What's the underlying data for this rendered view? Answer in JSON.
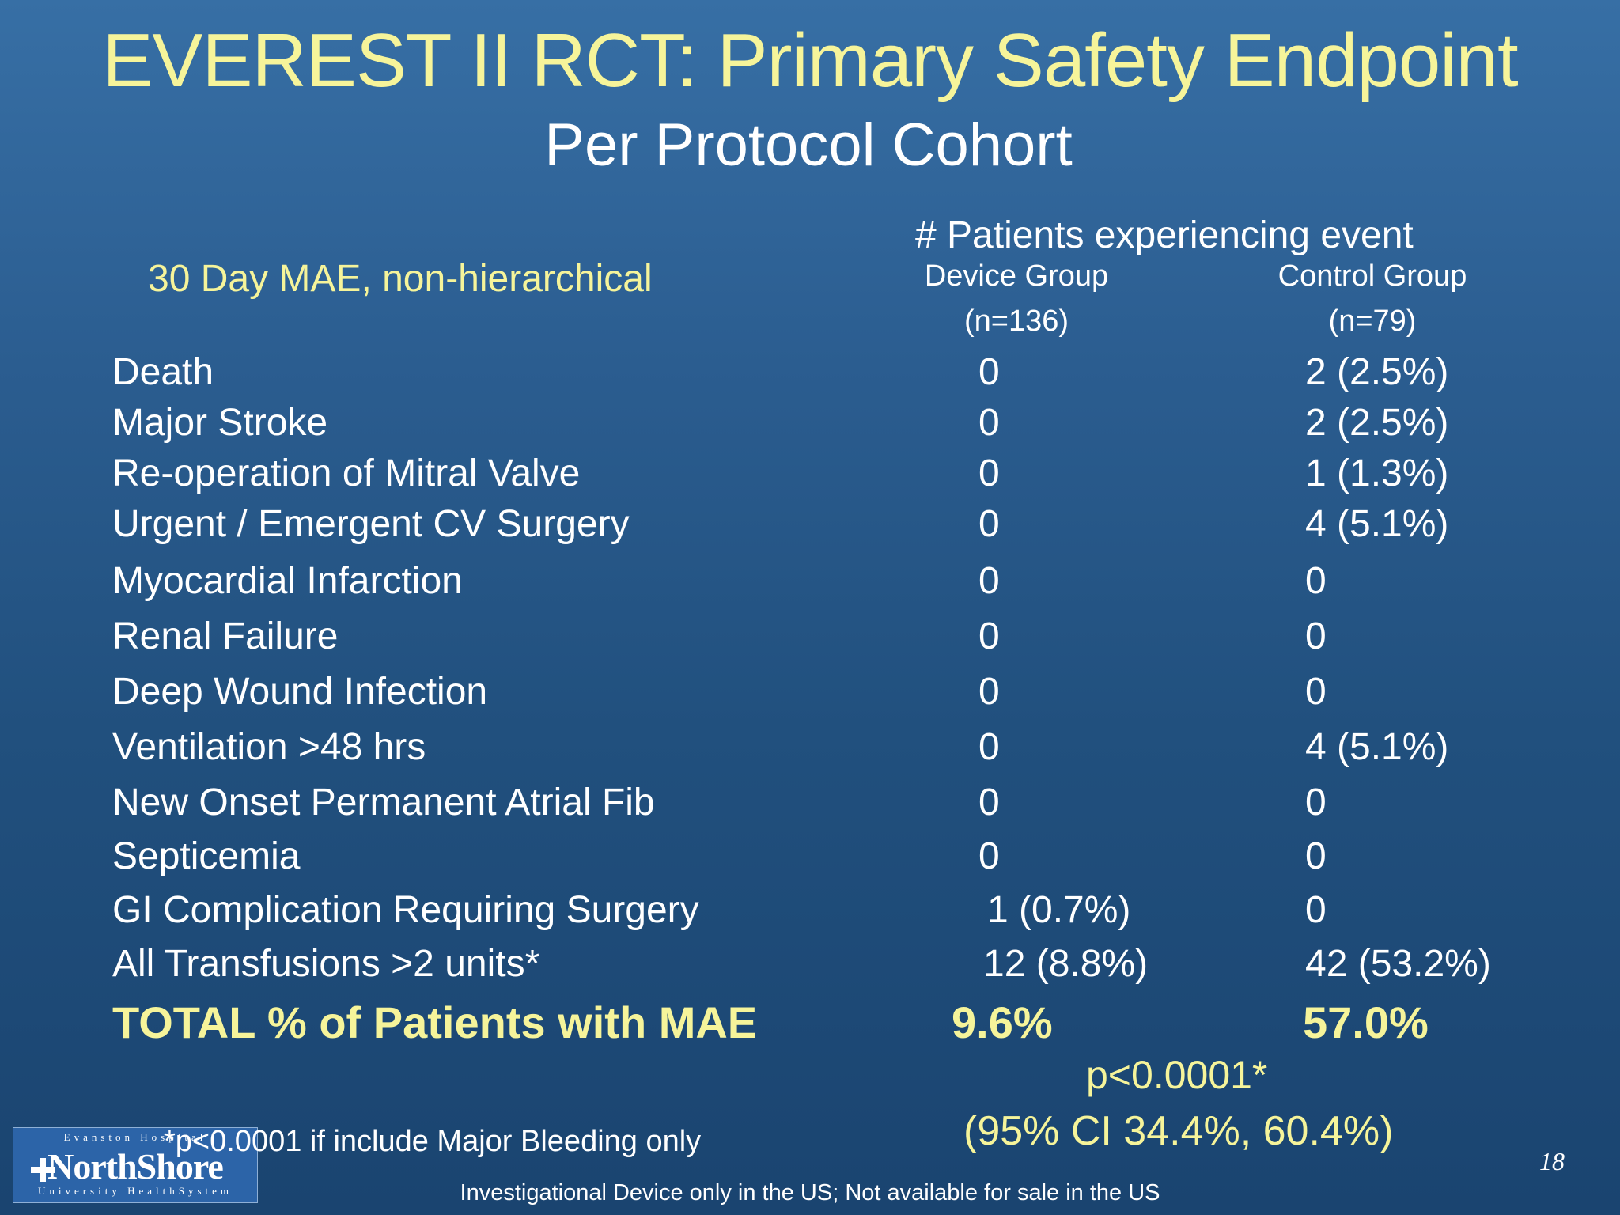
{
  "title": "EVEREST II RCT: Primary Safety Endpoint",
  "subtitle": "Per Protocol Cohort",
  "table": {
    "section_label": "30 Day MAE, non-hierarchical",
    "header": "#  Patients experiencing event",
    "columns": [
      {
        "name": "Device Group",
        "n": "(n=136)"
      },
      {
        "name": "Control Group",
        "n": "(n=79)"
      }
    ],
    "rows": [
      {
        "label": "Death",
        "device": "0",
        "control": "2 (2.5%)"
      },
      {
        "label": "Major Stroke",
        "device": "0",
        "control": "2 (2.5%)"
      },
      {
        "label": "Re-operation of Mitral Valve",
        "device": "0",
        "control": "1 (1.3%)"
      },
      {
        "label": "Urgent / Emergent CV Surgery",
        "device": "0",
        "control": "4 (5.1%)"
      },
      {
        "label": "Myocardial Infarction",
        "device": "0",
        "control": "0"
      },
      {
        "label": "Renal Failure",
        "device": "0",
        "control": "0"
      },
      {
        "label": "Deep Wound Infection",
        "device": "0",
        "control": "0"
      },
      {
        "label": "Ventilation >48 hrs",
        "device": "0",
        "control": "4 (5.1%)"
      },
      {
        "label": "New Onset Permanent Atrial Fib",
        "device": "0",
        "control": "0"
      },
      {
        "label": "Septicemia",
        "device": "0",
        "control": "0"
      },
      {
        "label": "GI Complication Requiring Surgery",
        "device": "1 (0.7%)",
        "control": "0"
      },
      {
        "label": "All Transfusions >2 units*",
        "device": "12 (8.8%)",
        "control": "42 (53.2%)"
      }
    ],
    "total": {
      "label": "TOTAL %  of Patients with MAE",
      "device": "9.6%",
      "control": "57.0%"
    }
  },
  "p_value": "p<0.0001*",
  "ci": "(95%  CI 34.4%, 60.4%)",
  "footnote": "*p<0.0001 if include Major Bleeding only",
  "disclaimer": "Investigational Device only in the US; Not available for sale in the US",
  "slide_number": "18",
  "logo": {
    "top_text": "Evanston Hospital",
    "name": "NorthShore",
    "bottom_text": "University HealthSystem"
  }
}
